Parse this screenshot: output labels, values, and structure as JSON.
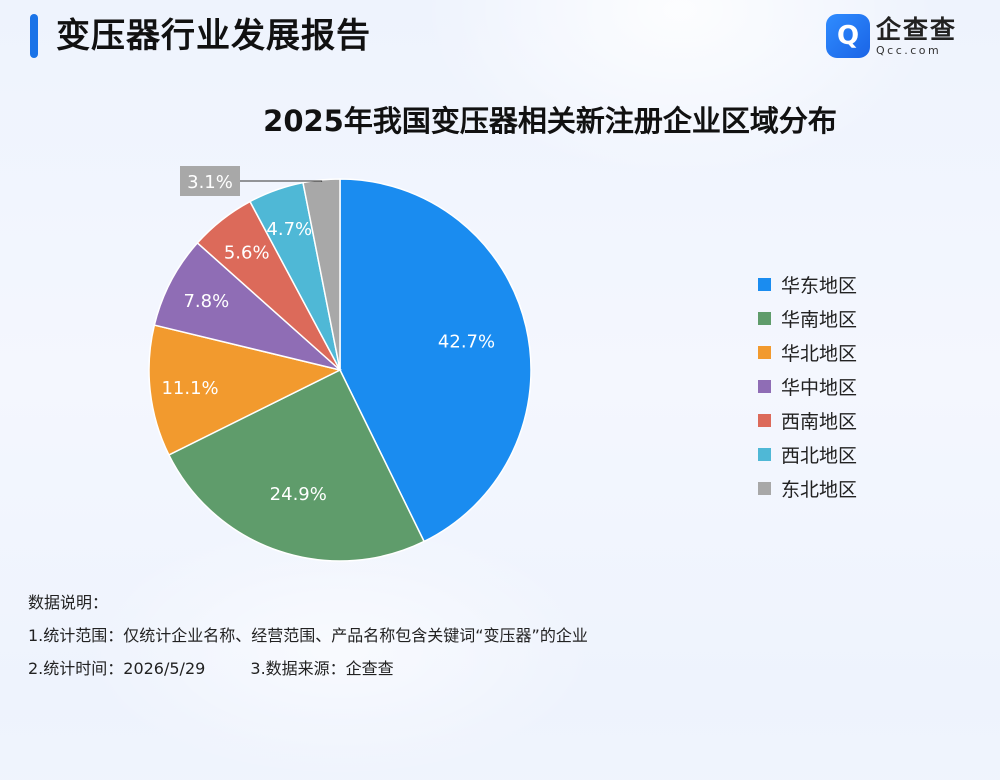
{
  "header": {
    "title": "变压器行业发展报告",
    "logo_icon": "企查查 logo Q mark",
    "logo_icon_glyph": "Q",
    "logo_text": "企查查",
    "logo_subtext": "Qcc.com"
  },
  "chart_data": {
    "type": "pie",
    "title": "2025年我国变压器相关新注册企业区域分布",
    "categories": [
      "华东地区",
      "华南地区",
      "华北地区",
      "华中地区",
      "西南地区",
      "西北地区",
      "东北地区"
    ],
    "values": [
      42.7,
      24.9,
      11.1,
      7.8,
      5.6,
      4.7,
      3.1
    ],
    "labels": [
      "42.7%",
      "24.9%",
      "11.1%",
      "7.8%",
      "5.6%",
      "4.7%",
      "3.1%"
    ],
    "colors": [
      "#1a8cf0",
      "#5f9c6b",
      "#f29a2e",
      "#8f6db5",
      "#dc6a5a",
      "#4fb8d6",
      "#a8a8a8"
    ],
    "legend_position": "right",
    "start": "12 o'clock, clockwise"
  },
  "notes": {
    "heading": "数据说明：",
    "scope": "1.统计范围：仅统计企业名称、经营范围、产品名称包含关键词“变压器”的企业",
    "time": "2.统计时间：2026/5/29",
    "source": "3.数据来源：企查查"
  }
}
